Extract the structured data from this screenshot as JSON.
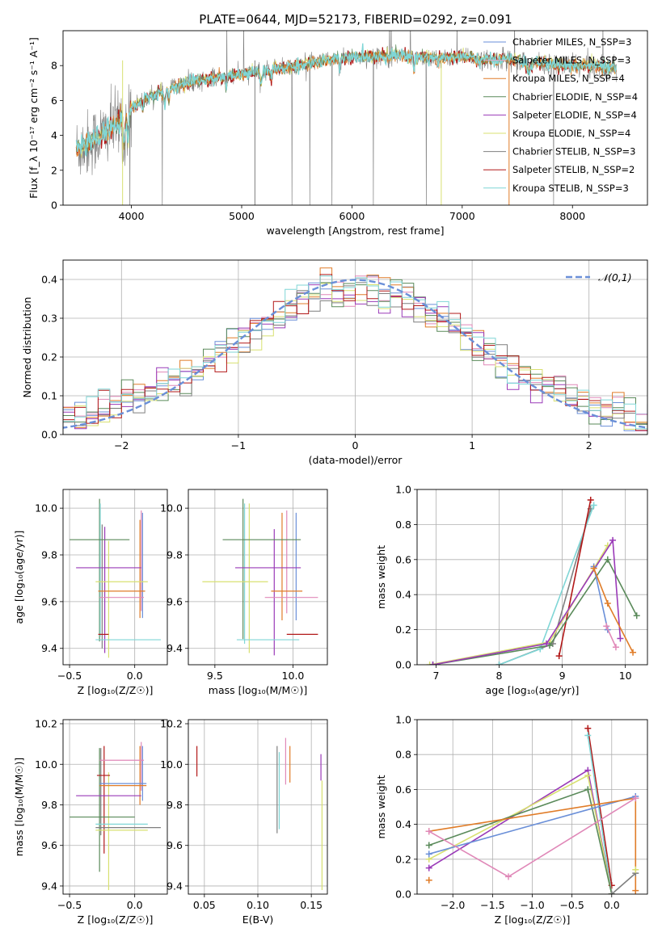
{
  "figure": {
    "title": "PLATE=0644, MJD=52173, FIBERID=0292, z=0.091",
    "colors": {
      "chabrier_miles": "#6a8fd8",
      "salpeter_miles": "#e0a8c8",
      "kroupa_miles": "#e07c28",
      "chabrier_elodie": "#5a8a5a",
      "salpeter_elodie": "#9a3ab8",
      "kroupa_elodie": "#d8e070",
      "chabrier_stelib": "#7f7f7f",
      "salpeter_stelib": "#b21818",
      "kroupa_stelib": "#7fd6d6",
      "pink": "#e088b8",
      "normal": "#6a8fd8",
      "grid": "#b0b0b0"
    }
  },
  "chart_data": [
    {
      "id": "spectrum",
      "type": "line",
      "xlabel": "wavelength [Angstrom, rest frame]",
      "ylabel": "Flux [f_λ 10⁻¹⁷ erg cm⁻² s⁻¹ A⁻¹]",
      "xlim": [
        3380,
        8680
      ],
      "ylim": [
        0,
        10
      ],
      "xticks": [
        4000,
        5000,
        6000,
        7000,
        8000
      ],
      "yticks": [
        0,
        2,
        4,
        6,
        8
      ],
      "grid": false,
      "legend_position": "right",
      "legend": [
        "Chabrier MILES, N_SSP=3",
        "Salpeter MILES, N_SSP=3",
        "Kroupa MILES, N_SSP=4",
        "Chabrier ELODIE, N_SSP=4",
        "Salpeter ELODIE, N_SSP=4",
        "Kroupa ELODIE, N_SSP=4",
        "Chabrier STELIB, N_SSP=3",
        "Salpeter STELIB, N_SSP=2",
        "Kroupa STELIB, N_SSP=3"
      ],
      "continuum": {
        "wavelength": [
          3500,
          3600,
          3700,
          3800,
          3900,
          4000,
          4100,
          4200,
          4300,
          4400,
          4500,
          4600,
          4800,
          5000,
          5200,
          5400,
          5600,
          5800,
          6000,
          6200,
          6400,
          6600,
          6800,
          7000,
          7200,
          7400,
          7600,
          7800,
          8000,
          8200,
          8400
        ],
        "flux": [
          3.2,
          3.5,
          3.9,
          4.3,
          4.8,
          5.6,
          6.0,
          6.3,
          6.6,
          6.8,
          7.0,
          7.1,
          7.3,
          7.5,
          7.7,
          7.9,
          8.1,
          8.3,
          8.5,
          8.5,
          8.6,
          8.5,
          8.4,
          8.5,
          8.3,
          8.4,
          8.2,
          8.1,
          8.0,
          8.0,
          7.8
        ]
      }
    },
    {
      "id": "residuals",
      "type": "line",
      "xlabel": "(data-model)/error",
      "ylabel": "Normed distribution",
      "xlim": [
        -2.5,
        2.5
      ],
      "ylim": [
        0,
        0.45
      ],
      "xticks": [
        -2,
        -1,
        0,
        1,
        2
      ],
      "yticks": [
        0.0,
        0.1,
        0.2,
        0.3,
        0.4
      ],
      "grid": true,
      "legend_position": "top-right",
      "legend": [
        "𝒩(0,1)"
      ],
      "bin_width": 0.1,
      "normal_curve": "N(0,1)"
    },
    {
      "id": "age_vs_Z",
      "type": "scatter",
      "xlabel": "Z [log₁₀(Z/Z☉)]",
      "ylabel": "age  [log₁₀(age/yr)]",
      "xlim": [
        -0.55,
        0.25
      ],
      "ylim": [
        9.33,
        10.08
      ],
      "xticks": [
        -0.5,
        0.0
      ],
      "yticks": [
        9.4,
        9.6,
        9.8,
        10.0
      ],
      "grid": true,
      "points": [
        {
          "x": -0.27,
          "y": 9.865,
          "xerr": 0.23,
          "yerr": 0.12,
          "color": "chabrier_elodie"
        },
        {
          "x": -0.2,
          "y": 9.745,
          "xerr": 0.25,
          "yerr": 0.09,
          "color": "salpeter_elodie"
        },
        {
          "x": -0.1,
          "y": 9.685,
          "xerr": 0.2,
          "yerr": 0.07,
          "color": "kroupa_elodie"
        },
        {
          "x": -0.1,
          "y": 9.645,
          "xerr": 0.18,
          "yerr": 0.05,
          "color": "kroupa_miles"
        },
        {
          "x": -0.1,
          "y": 9.618,
          "xerr": 0.17,
          "yerr": 0.05,
          "color": "pink"
        },
        {
          "x": -0.24,
          "y": 9.46,
          "xerr": 0.04,
          "yerr": 0.05,
          "color": "salpeter_stelib"
        },
        {
          "x": -0.05,
          "y": 9.437,
          "xerr": 0.25,
          "yerr": 0.02,
          "color": "kroupa_stelib"
        }
      ],
      "vlines": [
        {
          "x": -0.27,
          "y0": 9.43,
          "y1": 10.04,
          "color": "chabrier_elodie"
        },
        {
          "x": -0.265,
          "y0": 9.45,
          "y1": 10.02,
          "color": "kroupa_stelib"
        },
        {
          "x": -0.25,
          "y0": 9.4,
          "y1": 9.93,
          "color": "chabrier_stelib"
        },
        {
          "x": -0.23,
          "y0": 9.38,
          "y1": 9.92,
          "color": "salpeter_elodie"
        },
        {
          "x": -0.2,
          "y0": 9.36,
          "y1": 9.86,
          "color": "kroupa_elodie"
        },
        {
          "x": 0.04,
          "y0": 9.53,
          "y1": 9.95,
          "color": "kroupa_miles"
        },
        {
          "x": 0.05,
          "y0": 9.56,
          "y1": 9.99,
          "color": "pink"
        },
        {
          "x": 0.06,
          "y0": 9.53,
          "y1": 9.98,
          "color": "chabrier_miles"
        }
      ]
    },
    {
      "id": "age_vs_mass",
      "type": "scatter",
      "xlabel": "mass [log₁₀(M/M☉)]",
      "ylabel": "",
      "xlim": [
        9.33,
        10.22
      ],
      "ylim": [
        9.33,
        10.08
      ],
      "xticks": [
        9.5,
        10.0
      ],
      "yticks": [
        9.4,
        9.6,
        9.8,
        10.0
      ],
      "grid": true,
      "points": [
        {
          "x": 9.8,
          "y": 9.865,
          "xerr": 0.25,
          "yerr": 0.12,
          "color": "chabrier_elodie"
        },
        {
          "x": 9.84,
          "y": 9.745,
          "xerr": 0.21,
          "yerr": 0.09,
          "color": "salpeter_elodie"
        },
        {
          "x": 9.63,
          "y": 9.685,
          "xerr": 0.21,
          "yerr": 0.07,
          "color": "kroupa_elodie"
        },
        {
          "x": 9.96,
          "y": 9.645,
          "xerr": 0.1,
          "yerr": 0.05,
          "color": "kroupa_miles"
        },
        {
          "x": 9.99,
          "y": 9.618,
          "xerr": 0.17,
          "yerr": 0.05,
          "color": "pink"
        },
        {
          "x": 10.06,
          "y": 9.46,
          "xerr": 0.1,
          "yerr": 0.05,
          "color": "salpeter_stelib"
        },
        {
          "x": 9.84,
          "y": 9.437,
          "xerr": 0.2,
          "yerr": 0.02,
          "color": "kroupa_stelib"
        }
      ],
      "vlines": [
        {
          "x": 9.68,
          "y0": 9.44,
          "y1": 10.04,
          "color": "chabrier_elodie"
        },
        {
          "x": 9.69,
          "y0": 9.42,
          "y1": 10.02,
          "color": "kroupa_stelib"
        },
        {
          "x": 9.72,
          "y0": 9.38,
          "y1": 10.02,
          "color": "kroupa_elodie"
        },
        {
          "x": 9.88,
          "y0": 9.37,
          "y1": 9.91,
          "color": "salpeter_elodie"
        },
        {
          "x": 9.93,
          "y0": 9.52,
          "y1": 9.98,
          "color": "kroupa_miles"
        },
        {
          "x": 9.96,
          "y0": 9.55,
          "y1": 9.99,
          "color": "pink"
        },
        {
          "x": 10.02,
          "y0": 9.52,
          "y1": 9.98,
          "color": "chabrier_miles"
        }
      ]
    },
    {
      "id": "weight_vs_age",
      "type": "line",
      "xlabel": "age  [log₁₀(age/yr)]",
      "ylabel": "mass weight",
      "xlim": [
        6.7,
        10.35
      ],
      "ylim": [
        0,
        1
      ],
      "xticks": [
        7,
        8,
        9,
        10
      ],
      "yticks": [
        0.0,
        0.2,
        0.4,
        0.6,
        0.8,
        1.0
      ],
      "grid": true,
      "series": [
        {
          "color": "chabrier_stelib",
          "x": [
            8.0,
            8.85,
            9.45
          ],
          "y": [
            0.0,
            0.12,
            0.89
          ]
        },
        {
          "color": "kroupa_stelib",
          "x": [
            8.0,
            8.65,
            9.5
          ],
          "y": [
            0.0,
            0.09,
            0.91
          ]
        },
        {
          "color": "salpeter_stelib",
          "x": [
            8.95,
            9.45
          ],
          "y": [
            0.05,
            0.94
          ]
        },
        {
          "color": "kroupa_elodie",
          "x": [
            6.9,
            8.8,
            9.72
          ],
          "y": [
            0.0,
            0.13,
            0.68
          ]
        },
        {
          "color": "chabrier_elodie",
          "x": [
            6.95,
            8.8,
            9.72,
            10.18
          ],
          "y": [
            0.0,
            0.11,
            0.6,
            0.28
          ]
        },
        {
          "color": "salpeter_elodie",
          "x": [
            6.95,
            8.75,
            9.8,
            9.92
          ],
          "y": [
            0.0,
            0.12,
            0.71,
            0.15
          ]
        },
        {
          "color": "chabrier_miles",
          "x": [
            9.5,
            9.72
          ],
          "y": [
            0.56,
            0.2
          ]
        },
        {
          "color": "kroupa_miles",
          "x": [
            9.5,
            9.72,
            10.12
          ],
          "y": [
            0.55,
            0.35,
            0.07
          ]
        },
        {
          "color": "pink",
          "x": [
            9.7,
            9.85
          ],
          "y": [
            0.22,
            0.1
          ]
        }
      ]
    },
    {
      "id": "mass_vs_Z",
      "type": "scatter",
      "xlabel": "Z [log₁₀(Z/Z☉)]",
      "ylabel": "mass [log₁₀(M/M☉)]",
      "xlim": [
        -0.55,
        0.25
      ],
      "ylim": [
        9.36,
        10.22
      ],
      "xticks": [
        -0.5,
        0.0
      ],
      "yticks": [
        9.4,
        9.6,
        9.8,
        10.0,
        10.2
      ],
      "grid": true,
      "points": [
        {
          "x": -0.1,
          "y": 10.02,
          "xerr": 0.17,
          "yerr": 0.08,
          "color": "pink"
        },
        {
          "x": -0.24,
          "y": 9.945,
          "xerr": 0.05,
          "yerr": 0.12,
          "color": "salpeter_stelib"
        },
        {
          "x": -0.09,
          "y": 9.905,
          "xerr": 0.18,
          "yerr": 0.06,
          "color": "chabrier_miles"
        },
        {
          "x": -0.09,
          "y": 9.895,
          "xerr": 0.18,
          "yerr": 0.05,
          "color": "kroupa_miles"
        },
        {
          "x": -0.2,
          "y": 9.845,
          "xerr": 0.25,
          "yerr": 0.08,
          "color": "salpeter_elodie"
        },
        {
          "x": -0.25,
          "y": 9.74,
          "xerr": 0.25,
          "yerr": 0.1,
          "color": "chabrier_elodie"
        },
        {
          "x": -0.1,
          "y": 9.705,
          "xerr": 0.2,
          "yerr": 0.03,
          "color": "kroupa_stelib"
        },
        {
          "x": -0.05,
          "y": 9.688,
          "xerr": 0.25,
          "yerr": 0.02,
          "color": "chabrier_stelib"
        },
        {
          "x": -0.1,
          "y": 9.675,
          "xerr": 0.2,
          "yerr": 0.05,
          "color": "kroupa_elodie"
        }
      ],
      "vlines": [
        {
          "x": -0.27,
          "y0": 9.47,
          "y1": 10.08,
          "color": "chabrier_elodie"
        },
        {
          "x": -0.26,
          "y0": 9.65,
          "y1": 10.08,
          "color": "chabrier_stelib"
        },
        {
          "x": -0.235,
          "y0": 9.56,
          "y1": 10.09,
          "color": "salpeter_stelib"
        },
        {
          "x": -0.2,
          "y0": 9.38,
          "y1": 9.96,
          "color": "kroupa_elodie"
        },
        {
          "x": 0.04,
          "y0": 9.8,
          "y1": 10.09,
          "color": "kroupa_miles"
        },
        {
          "x": 0.05,
          "y0": 9.87,
          "y1": 10.11,
          "color": "pink"
        },
        {
          "x": 0.06,
          "y0": 9.82,
          "y1": 10.09,
          "color": "chabrier_miles"
        }
      ]
    },
    {
      "id": "mass_vs_ebv",
      "type": "scatter",
      "xlabel": "E(B-V)",
      "ylabel": "",
      "xlim": [
        0.035,
        0.165
      ],
      "ylim": [
        9.36,
        10.22
      ],
      "xticks": [
        0.05,
        0.1,
        0.15
      ],
      "yticks": [
        9.4,
        9.6,
        9.8,
        10.0,
        10.2
      ],
      "grid": true,
      "vlines": [
        {
          "x": 0.043,
          "y0": 9.94,
          "y1": 10.09,
          "color": "salpeter_stelib"
        },
        {
          "x": 0.118,
          "y0": 9.66,
          "y1": 10.09,
          "color": "chabrier_stelib"
        },
        {
          "x": 0.12,
          "y0": 9.68,
          "y1": 10.06,
          "color": "kroupa_stelib"
        },
        {
          "x": 0.126,
          "y0": 9.9,
          "y1": 10.13,
          "color": "pink"
        },
        {
          "x": 0.13,
          "y0": 9.91,
          "y1": 10.09,
          "color": "kroupa_miles"
        },
        {
          "x": 0.159,
          "y0": 9.92,
          "y1": 10.05,
          "color": "salpeter_elodie"
        },
        {
          "x": 0.16,
          "y0": 9.38,
          "y1": 9.92,
          "color": "kroupa_elodie"
        }
      ]
    },
    {
      "id": "weight_vs_Z",
      "type": "line",
      "xlabel": "Z [log₁₀(Z/Z☉)]",
      "ylabel": "mass weight",
      "xlim": [
        -2.45,
        0.45
      ],
      "ylim": [
        0,
        1
      ],
      "xticks": [
        -2.0,
        -1.5,
        -1.0,
        -0.5,
        0.0
      ],
      "yticks": [
        0.0,
        0.2,
        0.4,
        0.6,
        0.8,
        1.0
      ],
      "grid": true,
      "series": [
        {
          "color": "salpeter_stelib",
          "x": [
            -0.3,
            0.0
          ],
          "y": [
            0.95,
            0.05
          ]
        },
        {
          "color": "kroupa_stelib",
          "x": [
            -0.3,
            0.0
          ],
          "y": [
            0.91,
            0.0
          ]
        },
        {
          "color": "salpeter_elodie",
          "x": [
            -2.3,
            -0.3,
            0.0
          ],
          "y": [
            0.15,
            0.71,
            0.0
          ]
        },
        {
          "color": "kroupa_elodie",
          "x": [
            -2.3,
            -0.3,
            0.0
          ],
          "y": [
            0.2,
            0.68,
            0.0
          ]
        },
        {
          "color": "chabrier_elodie",
          "x": [
            -2.3,
            -0.3,
            0.0
          ],
          "y": [
            0.28,
            0.6,
            0.0
          ]
        },
        {
          "color": "chabrier_miles",
          "x": [
            -2.3,
            0.3
          ],
          "y": [
            0.23,
            0.56
          ]
        },
        {
          "color": "kroupa_miles",
          "x": [
            -2.3,
            0.3,
            0.3
          ],
          "y": [
            0.36,
            0.55,
            0.02
          ]
        },
        {
          "color": "pink",
          "x": [
            -2.3,
            -1.3,
            0.3
          ],
          "y": [
            0.36,
            0.1,
            0.55
          ]
        },
        {
          "color": "chabrier_stelib",
          "x": [
            0.0,
            0.3
          ],
          "y": [
            0.0,
            0.12
          ]
        },
        {
          "color": "kroupa_elodie",
          "x": [
            0.3
          ],
          "y": [
            0.14
          ]
        },
        {
          "color": "kroupa_miles",
          "x": [
            -2.3
          ],
          "y": [
            0.08
          ]
        }
      ]
    }
  ]
}
